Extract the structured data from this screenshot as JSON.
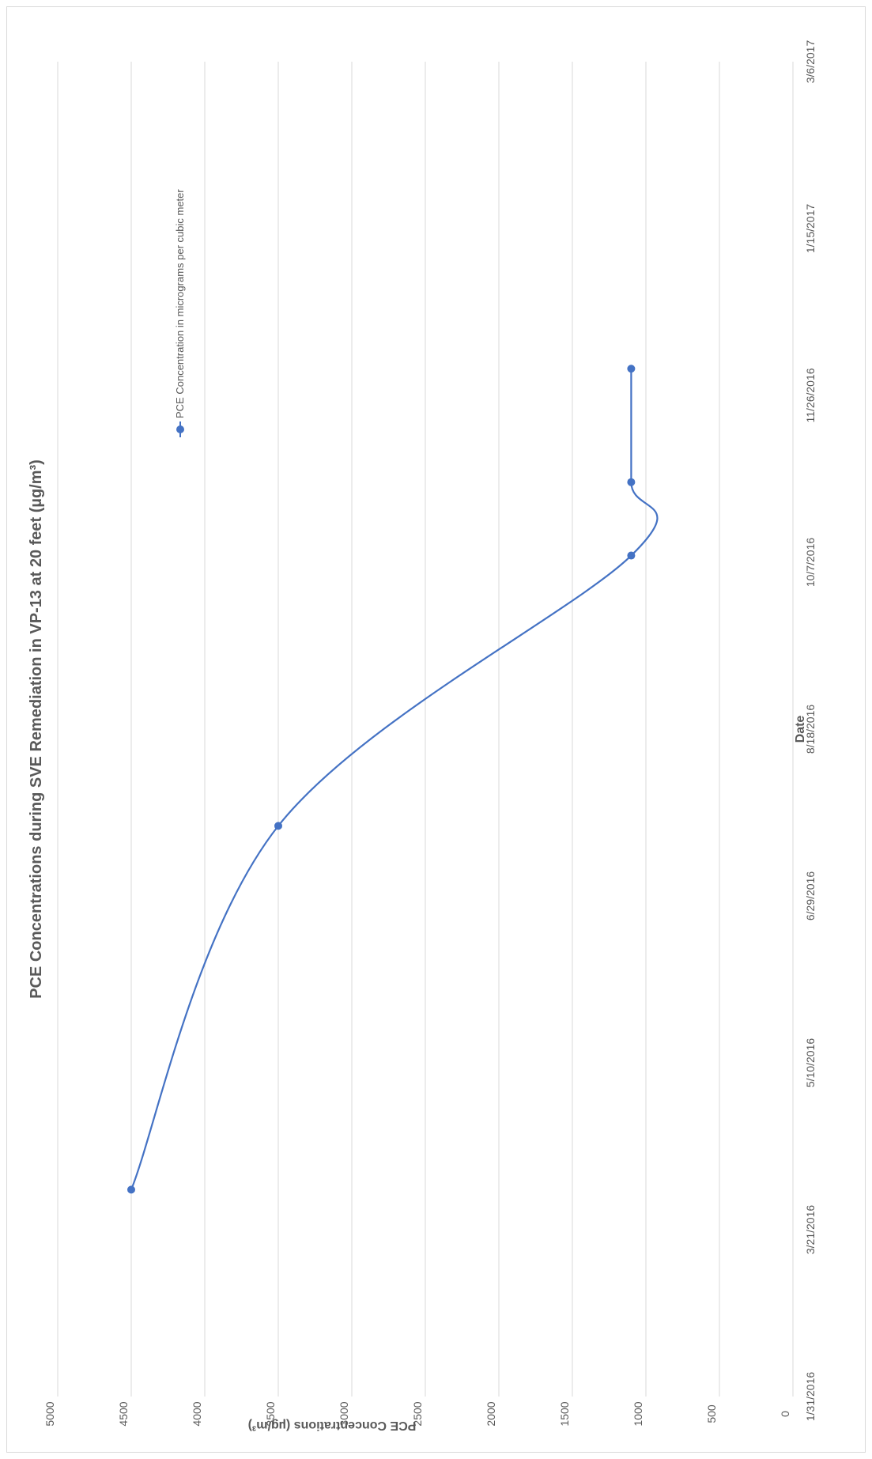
{
  "chart_data": {
    "type": "line",
    "title": "PCE Concentrations during SVE Remediation in VP-13 at 20 feet (µg/m³)",
    "xlabel": "Date",
    "ylabel": "PCE Concentrations (µg/m³)",
    "x_tick_labels": [
      "1/31/2016",
      "3/21/2016",
      "5/10/2016",
      "6/29/2016",
      "8/18/2016",
      "10/7/2016",
      "11/26/2016",
      "1/15/2017",
      "3/6/2017"
    ],
    "y_tick_labels": [
      "0",
      "500",
      "1000",
      "1500",
      "2000",
      "2500",
      "3000",
      "3500",
      "4000",
      "4500",
      "5000"
    ],
    "xlim": [
      "2016-01-31",
      "2017-03-06"
    ],
    "ylim": [
      0,
      5000
    ],
    "grid": true,
    "smoothed": true,
    "legend_position": "top-right",
    "series": [
      {
        "name": "PCE Concentration in micrograms per cubic meter",
        "color": "#4472c4",
        "points": [
          {
            "x": "2016-04-02",
            "y": 4500
          },
          {
            "x": "2016-07-20",
            "y": 3500
          },
          {
            "x": "2016-10-09",
            "y": 1100
          },
          {
            "x": "2016-10-31",
            "y": 1100
          },
          {
            "x": "2016-12-04",
            "y": 1100
          }
        ]
      }
    ]
  }
}
